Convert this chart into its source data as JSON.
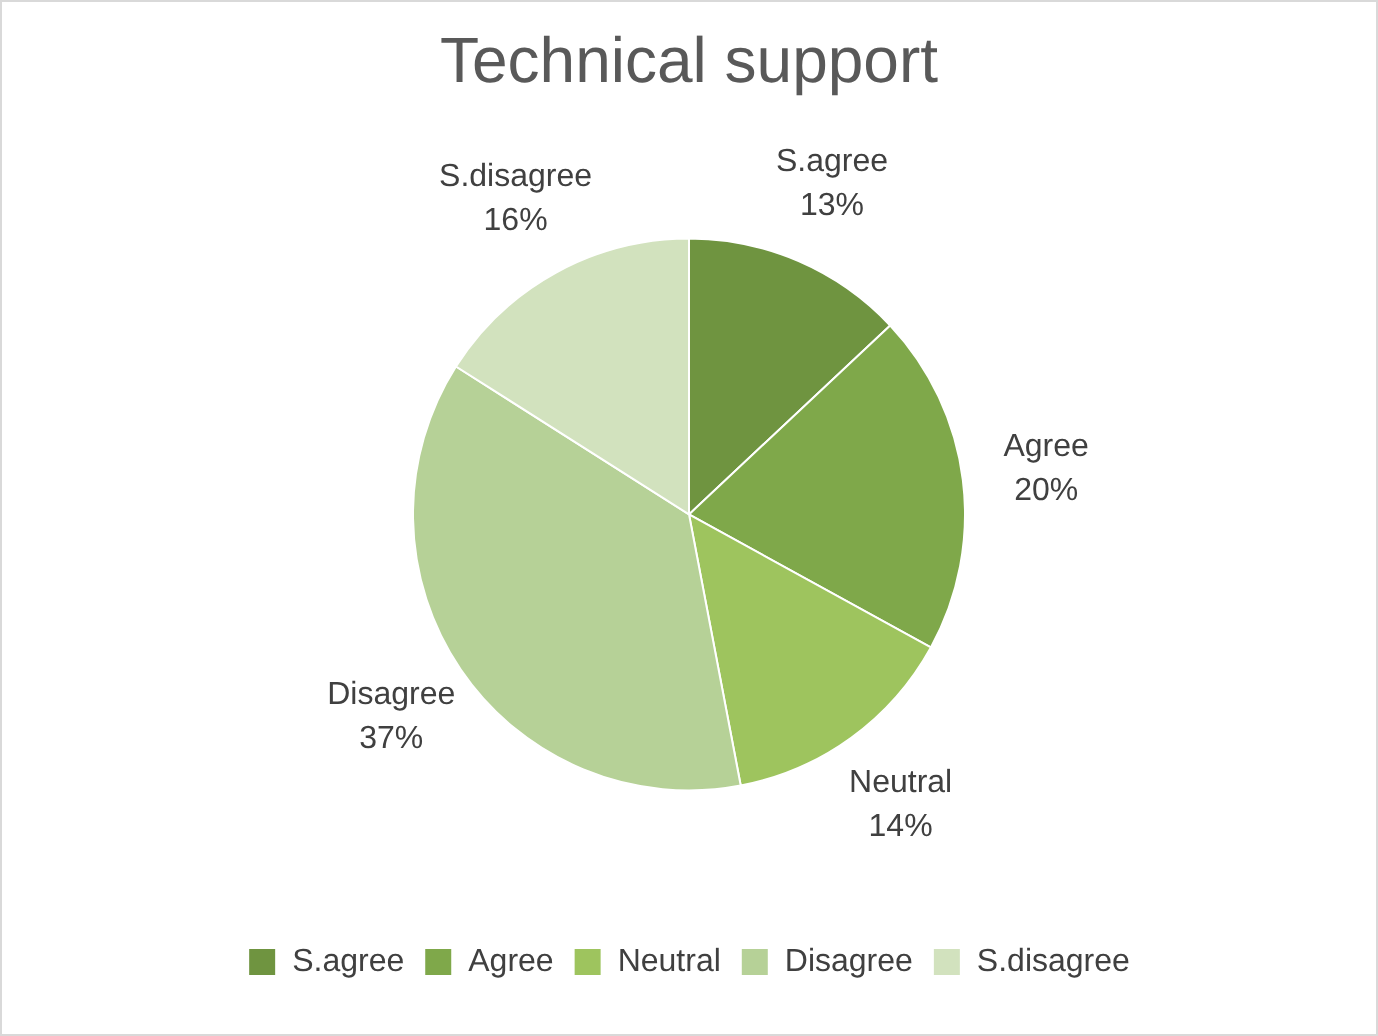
{
  "chart_data": {
    "type": "pie",
    "title": "Technical support",
    "categories": [
      "S.agree",
      "Agree",
      "Neutral",
      "Disagree",
      "S.disagree"
    ],
    "values": [
      13,
      20,
      14,
      37,
      16
    ],
    "value_labels": [
      "13%",
      "20%",
      "14%",
      "37%",
      "16%"
    ],
    "colors": [
      "#6f9440",
      "#7fa84a",
      "#9ec45e",
      "#b6d197",
      "#d2e2be"
    ],
    "legend": "bottom"
  }
}
